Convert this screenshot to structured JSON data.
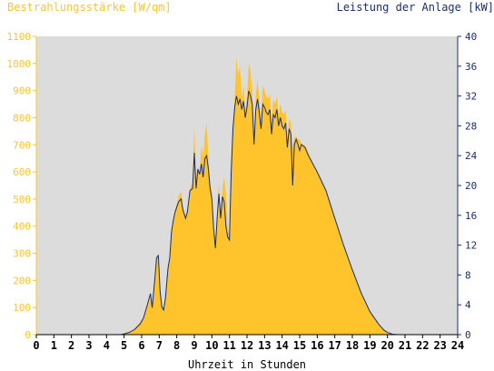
{
  "header": {
    "left_title": "Bestrahlungsstärke [W/qm]",
    "right_title": "Leistung der Anlage [kW]"
  },
  "colors": {
    "plot_background": "#dcdcdc",
    "irradiance_fill": "#ffc42b",
    "power_line": "#1a2e6e",
    "left_axis": "#ffc42b",
    "right_axis": "#1a2e6e",
    "x_axis": "#000000"
  },
  "chart_data": {
    "type": "area",
    "xlabel": "Uhrzeit in Stunden",
    "xlim": [
      0,
      24
    ],
    "x_ticks": [
      "0",
      "1",
      "2",
      "3",
      "4",
      "5",
      "6",
      "7",
      "8",
      "9",
      "10",
      "11",
      "12",
      "13",
      "14",
      "15",
      "16",
      "17",
      "18",
      "19",
      "20",
      "21",
      "22",
      "23",
      "24"
    ],
    "y_left": {
      "label": "Bestrahlungsstärke [W/qm]",
      "lim": [
        0,
        1100
      ],
      "ticks": [
        "0",
        "100",
        "200",
        "300",
        "400",
        "500",
        "600",
        "700",
        "800",
        "900",
        "1000",
        "1100"
      ]
    },
    "y_right": {
      "label": "Leistung der Anlage [kW]",
      "lim": [
        0,
        40
      ],
      "ticks": [
        "0",
        "4",
        "8",
        "12",
        "16",
        "20",
        "24",
        "28",
        "32",
        "36",
        "40"
      ]
    },
    "grid": false,
    "series": [
      {
        "name": "Bestrahlungsstärke [W/qm]",
        "type": "area",
        "axis": "left",
        "points": [
          [
            0,
            0
          ],
          [
            4.8,
            0
          ],
          [
            5.0,
            3
          ],
          [
            5.3,
            10
          ],
          [
            5.6,
            22
          ],
          [
            5.9,
            45
          ],
          [
            6.1,
            65
          ],
          [
            6.3,
            110
          ],
          [
            6.5,
            150
          ],
          [
            6.6,
            110
          ],
          [
            6.75,
            200
          ],
          [
            6.85,
            290
          ],
          [
            6.95,
            300
          ],
          [
            7.05,
            170
          ],
          [
            7.15,
            110
          ],
          [
            7.25,
            100
          ],
          [
            7.35,
            140
          ],
          [
            7.5,
            250
          ],
          [
            7.6,
            290
          ],
          [
            7.7,
            380
          ],
          [
            7.8,
            420
          ],
          [
            7.9,
            460
          ],
          [
            8.0,
            480
          ],
          [
            8.1,
            510
          ],
          [
            8.25,
            530
          ],
          [
            8.35,
            470
          ],
          [
            8.5,
            440
          ],
          [
            8.6,
            460
          ],
          [
            8.75,
            540
          ],
          [
            8.9,
            560
          ],
          [
            9.0,
            770
          ],
          [
            9.1,
            570
          ],
          [
            9.2,
            610
          ],
          [
            9.3,
            590
          ],
          [
            9.4,
            700
          ],
          [
            9.5,
            650
          ],
          [
            9.6,
            740
          ],
          [
            9.7,
            780
          ],
          [
            9.8,
            650
          ],
          [
            9.9,
            560
          ],
          [
            10.0,
            520
          ],
          [
            10.1,
            400
          ],
          [
            10.2,
            360
          ],
          [
            10.3,
            450
          ],
          [
            10.4,
            560
          ],
          [
            10.5,
            450
          ],
          [
            10.6,
            540
          ],
          [
            10.7,
            580
          ],
          [
            10.8,
            520
          ],
          [
            10.9,
            390
          ],
          [
            11.0,
            370
          ],
          [
            11.1,
            600
          ],
          [
            11.2,
            750
          ],
          [
            11.3,
            880
          ],
          [
            11.4,
            1020
          ],
          [
            11.5,
            960
          ],
          [
            11.6,
            990
          ],
          [
            11.7,
            870
          ],
          [
            11.8,
            920
          ],
          [
            11.9,
            820
          ],
          [
            12.0,
            880
          ],
          [
            12.1,
            1000
          ],
          [
            12.2,
            970
          ],
          [
            12.3,
            900
          ],
          [
            12.4,
            720
          ],
          [
            12.5,
            880
          ],
          [
            12.6,
            940
          ],
          [
            12.7,
            870
          ],
          [
            12.8,
            780
          ],
          [
            12.9,
            920
          ],
          [
            13.0,
            900
          ],
          [
            13.1,
            880
          ],
          [
            13.2,
            870
          ],
          [
            13.3,
            890
          ],
          [
            13.4,
            780
          ],
          [
            13.5,
            870
          ],
          [
            13.6,
            850
          ],
          [
            13.7,
            880
          ],
          [
            13.8,
            810
          ],
          [
            13.9,
            850
          ],
          [
            14.0,
            820
          ],
          [
            14.1,
            810
          ],
          [
            14.2,
            830
          ],
          [
            14.3,
            720
          ],
          [
            14.4,
            800
          ],
          [
            14.5,
            780
          ],
          [
            14.6,
            690
          ],
          [
            14.7,
            730
          ],
          [
            14.8,
            730
          ],
          [
            14.9,
            720
          ],
          [
            15.0,
            720
          ],
          [
            15.1,
            700
          ],
          [
            15.3,
            700
          ],
          [
            15.5,
            670
          ],
          [
            16.0,
            600
          ],
          [
            16.5,
            530
          ],
          [
            17.0,
            430
          ],
          [
            17.5,
            330
          ],
          [
            18.0,
            240
          ],
          [
            18.5,
            155
          ],
          [
            19.0,
            85
          ],
          [
            19.5,
            38
          ],
          [
            19.8,
            18
          ],
          [
            20.0,
            8
          ],
          [
            20.3,
            2
          ],
          [
            20.6,
            0
          ],
          [
            24,
            0
          ]
        ]
      },
      {
        "name": "Leistung der Anlage [kW]",
        "type": "line",
        "axis": "right",
        "points": [
          [
            0,
            0
          ],
          [
            4.8,
            0
          ],
          [
            5.0,
            0.1
          ],
          [
            5.3,
            0.3
          ],
          [
            5.6,
            0.7
          ],
          [
            5.9,
            1.4
          ],
          [
            6.1,
            2.2
          ],
          [
            6.3,
            3.8
          ],
          [
            6.5,
            5.5
          ],
          [
            6.6,
            3.6
          ],
          [
            6.75,
            7.5
          ],
          [
            6.85,
            10.3
          ],
          [
            6.95,
            10.6
          ],
          [
            7.05,
            5.8
          ],
          [
            7.15,
            3.7
          ],
          [
            7.25,
            3.3
          ],
          [
            7.35,
            4.8
          ],
          [
            7.5,
            8.9
          ],
          [
            7.6,
            10.3
          ],
          [
            7.7,
            13.8
          ],
          [
            7.8,
            15.3
          ],
          [
            7.9,
            16.4
          ],
          [
            8.0,
            17.1
          ],
          [
            8.1,
            17.8
          ],
          [
            8.25,
            18.2
          ],
          [
            8.35,
            16.7
          ],
          [
            8.5,
            15.6
          ],
          [
            8.6,
            16.4
          ],
          [
            8.75,
            19.3
          ],
          [
            8.9,
            19.6
          ],
          [
            9.0,
            24.4
          ],
          [
            9.1,
            19.6
          ],
          [
            9.2,
            22.2
          ],
          [
            9.3,
            21.5
          ],
          [
            9.4,
            22.9
          ],
          [
            9.5,
            21.1
          ],
          [
            9.6,
            23.6
          ],
          [
            9.7,
            24.0
          ],
          [
            9.8,
            22.2
          ],
          [
            9.9,
            19.6
          ],
          [
            10.0,
            18.2
          ],
          [
            10.1,
            14.2
          ],
          [
            10.2,
            11.6
          ],
          [
            10.3,
            15.6
          ],
          [
            10.4,
            18.9
          ],
          [
            10.5,
            15.6
          ],
          [
            10.6,
            18.5
          ],
          [
            10.7,
            17.8
          ],
          [
            10.8,
            14.5
          ],
          [
            10.9,
            13.1
          ],
          [
            11.0,
            12.7
          ],
          [
            11.1,
            21.8
          ],
          [
            11.2,
            27.6
          ],
          [
            11.3,
            30.5
          ],
          [
            11.4,
            32.0
          ],
          [
            11.5,
            30.9
          ],
          [
            11.6,
            31.6
          ],
          [
            11.7,
            30.2
          ],
          [
            11.8,
            31.3
          ],
          [
            11.9,
            29.1
          ],
          [
            12.0,
            30.5
          ],
          [
            12.1,
            32.7
          ],
          [
            12.2,
            32.0
          ],
          [
            12.3,
            30.9
          ],
          [
            12.4,
            25.5
          ],
          [
            12.5,
            30.2
          ],
          [
            12.6,
            31.6
          ],
          [
            12.7,
            29.8
          ],
          [
            12.8,
            27.6
          ],
          [
            12.9,
            30.9
          ],
          [
            13.0,
            30.5
          ],
          [
            13.1,
            29.8
          ],
          [
            13.2,
            29.5
          ],
          [
            13.3,
            30.2
          ],
          [
            13.4,
            26.9
          ],
          [
            13.5,
            29.5
          ],
          [
            13.6,
            29.1
          ],
          [
            13.7,
            30.2
          ],
          [
            13.8,
            28.0
          ],
          [
            13.9,
            29.1
          ],
          [
            14.0,
            28.0
          ],
          [
            14.1,
            27.6
          ],
          [
            14.2,
            28.4
          ],
          [
            14.3,
            25.1
          ],
          [
            14.4,
            27.6
          ],
          [
            14.5,
            26.9
          ],
          [
            14.6,
            20.0
          ],
          [
            14.7,
            25.5
          ],
          [
            14.8,
            26.2
          ],
          [
            14.9,
            25.5
          ],
          [
            15.0,
            24.7
          ],
          [
            15.1,
            25.5
          ],
          [
            15.3,
            25.1
          ],
          [
            15.5,
            24.0
          ],
          [
            16.0,
            21.8
          ],
          [
            16.5,
            19.3
          ],
          [
            17.0,
            15.6
          ],
          [
            17.5,
            12.0
          ],
          [
            18.0,
            8.7
          ],
          [
            18.5,
            5.6
          ],
          [
            19.0,
            3.1
          ],
          [
            19.5,
            1.4
          ],
          [
            19.8,
            0.6
          ],
          [
            20.0,
            0.3
          ],
          [
            20.3,
            0.05
          ],
          [
            20.6,
            0
          ],
          [
            24,
            0
          ]
        ]
      }
    ]
  }
}
